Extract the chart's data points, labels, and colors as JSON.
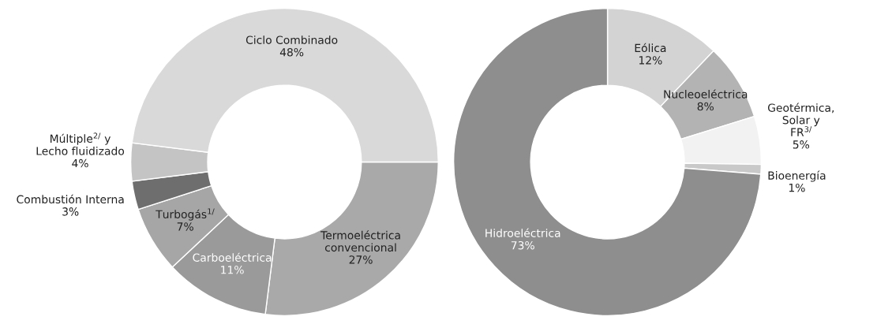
{
  "chart_data": [
    {
      "type": "donut",
      "categories": [
        "Termoeléctrica convencional",
        "Carboeléctrica",
        "Turbogás$^{1/}$",
        "Combustión Interna",
        "Múltiple$^{2/}$ y Lecho fluidizado",
        "Ciclo Combinado"
      ],
      "values": [
        27,
        11,
        7,
        3,
        4,
        48
      ],
      "value_labels": [
        "27%",
        "11%",
        "7%",
        "3%",
        "4%",
        "48%"
      ],
      "colors": [
        "#a9a9a9",
        "#9a9a9a",
        "#a6a6a6",
        "#6e6e6e",
        "#c4c4c4",
        "#d9d9d9"
      ]
    },
    {
      "type": "donut",
      "categories": [
        "Eólica",
        "Nucleoeléctrica",
        "Geotérmica, Solar y FR$^{3/}$",
        "Bioenergía",
        "Hidroeléctrica"
      ],
      "values": [
        12,
        8,
        5,
        1,
        73
      ],
      "value_labels": [
        "12%",
        "8%",
        "5%",
        "1%",
        "73%"
      ],
      "colors": [
        "#d3d3d3",
        "#b3b3b3",
        "#f2f2f2",
        "#c9c9c9",
        "#8e8e8e"
      ]
    }
  ]
}
